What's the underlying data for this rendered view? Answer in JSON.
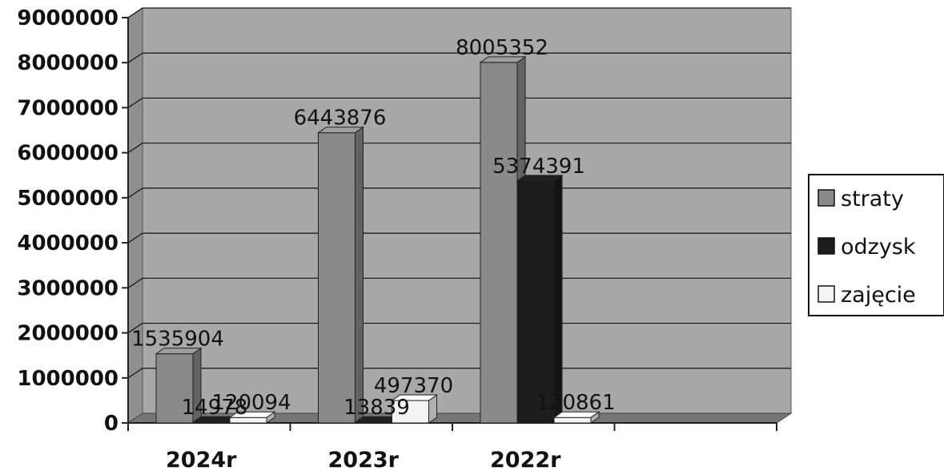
{
  "chart_data": {
    "type": "bar",
    "categories": [
      "2024r",
      "2023r",
      "2022r"
    ],
    "series": [
      {
        "name": "straty",
        "values": [
          1535904,
          6443876,
          8005352
        ],
        "labels": [
          "1535904",
          "6443876",
          "8005352"
        ]
      },
      {
        "name": "odzysk",
        "values": [
          14978,
          13839,
          5374391
        ],
        "labels": [
          "14978",
          "13839",
          "5374391"
        ]
      },
      {
        "name": "zajęcie",
        "values": [
          120094,
          497370,
          120861
        ],
        "labels": [
          "120094",
          "497370",
          "120861"
        ]
      }
    ],
    "ylim": [
      0,
      9000000
    ],
    "yticks": [
      "0",
      "1000000",
      "2000000",
      "3000000",
      "4000000",
      "5000000",
      "6000000",
      "7000000",
      "8000000",
      "9000000"
    ],
    "grid": true,
    "legend_position": "right",
    "colors": {
      "straty": "#8a8a8a",
      "odzysk": "#1c1c1c",
      "zajecie": "#f4f4f4",
      "plot_background": "#a8a8a8"
    }
  }
}
